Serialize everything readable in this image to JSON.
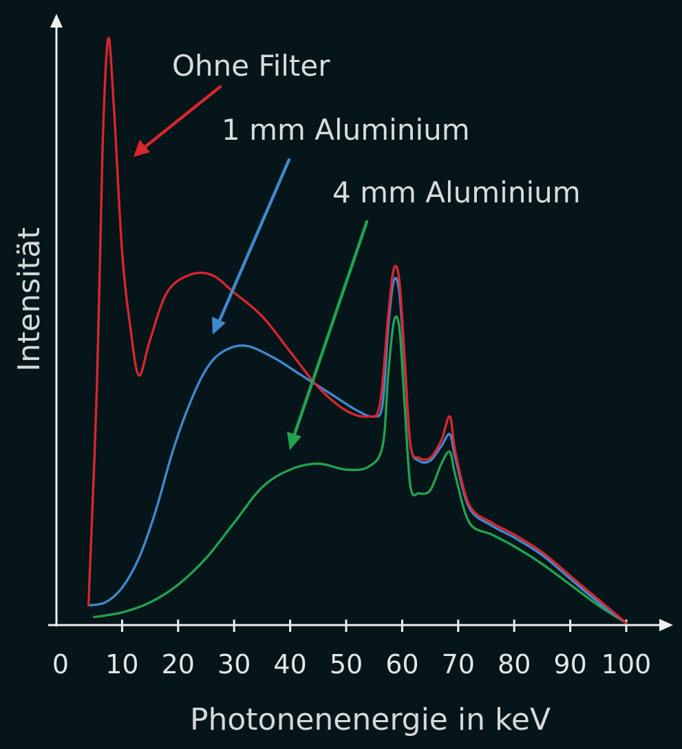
{
  "chart_data": {
    "type": "line",
    "title": "",
    "xlabel": "Photonenenergie in keV",
    "ylabel": "Intensität",
    "xlim": [
      0,
      100
    ],
    "ylim": [
      0,
      100
    ],
    "x_ticks": [
      "0",
      "10",
      "20",
      "30",
      "40",
      "50",
      "60",
      "70",
      "80",
      "90",
      "100"
    ],
    "grid": false,
    "legend": "none",
    "series": [
      {
        "name": "Ohne Filter",
        "color": "#d8262e",
        "points": [
          [
            4,
            3
          ],
          [
            5.5,
            40
          ],
          [
            6.5,
            80
          ],
          [
            7.5,
            99
          ],
          [
            8.5,
            88
          ],
          [
            10,
            63
          ],
          [
            11.5,
            50
          ],
          [
            13,
            42
          ],
          [
            15,
            48
          ],
          [
            18,
            56
          ],
          [
            22,
            59
          ],
          [
            26,
            59
          ],
          [
            30,
            56
          ],
          [
            35,
            52
          ],
          [
            40,
            46
          ],
          [
            45,
            40
          ],
          [
            50,
            36
          ],
          [
            54,
            35
          ],
          [
            56,
            37
          ],
          [
            57.5,
            52
          ],
          [
            58.5,
            60
          ],
          [
            59.5,
            58
          ],
          [
            60.5,
            44
          ],
          [
            61.5,
            30
          ],
          [
            63,
            28
          ],
          [
            65,
            28
          ],
          [
            67,
            31
          ],
          [
            68.5,
            35
          ],
          [
            69.5,
            29
          ],
          [
            72,
            20
          ],
          [
            76,
            17
          ],
          [
            80,
            15
          ],
          [
            85,
            12
          ],
          [
            90,
            8
          ],
          [
            95,
            4
          ],
          [
            100,
            0
          ]
        ]
      },
      {
        "name": "1 mm Aluminium",
        "color": "#3f89cf",
        "points": [
          [
            4,
            3
          ],
          [
            7,
            3.5
          ],
          [
            10,
            6
          ],
          [
            13,
            11
          ],
          [
            16,
            19
          ],
          [
            19,
            29
          ],
          [
            22,
            37
          ],
          [
            25,
            43
          ],
          [
            28,
            46
          ],
          [
            32,
            47
          ],
          [
            37,
            45
          ],
          [
            42,
            42
          ],
          [
            47,
            39
          ],
          [
            52,
            36
          ],
          [
            55,
            35
          ],
          [
            56.5,
            37
          ],
          [
            57.5,
            50
          ],
          [
            58.5,
            58
          ],
          [
            59.5,
            56
          ],
          [
            60.5,
            43
          ],
          [
            61.5,
            30
          ],
          [
            63,
            27.5
          ],
          [
            65,
            27.5
          ],
          [
            67,
            30
          ],
          [
            68.5,
            32
          ],
          [
            69.5,
            28
          ],
          [
            72,
            19.5
          ],
          [
            76,
            16.5
          ],
          [
            80,
            14.5
          ],
          [
            85,
            11.5
          ],
          [
            90,
            7.5
          ],
          [
            95,
            3.5
          ],
          [
            100,
            0
          ]
        ]
      },
      {
        "name": "4 mm Aluminium",
        "color": "#22a24f",
        "points": [
          [
            5,
            1
          ],
          [
            10,
            1.8
          ],
          [
            15,
            3.5
          ],
          [
            20,
            6.5
          ],
          [
            25,
            11
          ],
          [
            30,
            17
          ],
          [
            35,
            23
          ],
          [
            40,
            26
          ],
          [
            45,
            27
          ],
          [
            50,
            26
          ],
          [
            54,
            26.5
          ],
          [
            56.5,
            30
          ],
          [
            57.5,
            42
          ],
          [
            58.5,
            51
          ],
          [
            59.5,
            50
          ],
          [
            60.5,
            36
          ],
          [
            61.5,
            23
          ],
          [
            63,
            22
          ],
          [
            65,
            22.5
          ],
          [
            67,
            27
          ],
          [
            68.5,
            29
          ],
          [
            69.5,
            25
          ],
          [
            72,
            17
          ],
          [
            76,
            15
          ],
          [
            80,
            13
          ],
          [
            85,
            10
          ],
          [
            90,
            6.5
          ],
          [
            95,
            3
          ],
          [
            100,
            0
          ]
        ]
      }
    ],
    "annotations": [
      {
        "text": "Ohne Filter",
        "color": "#d8262e"
      },
      {
        "text": "1 mm Aluminium",
        "color": "#3f89cf"
      },
      {
        "text": "4 mm Aluminium",
        "color": "#22a24f"
      }
    ]
  }
}
